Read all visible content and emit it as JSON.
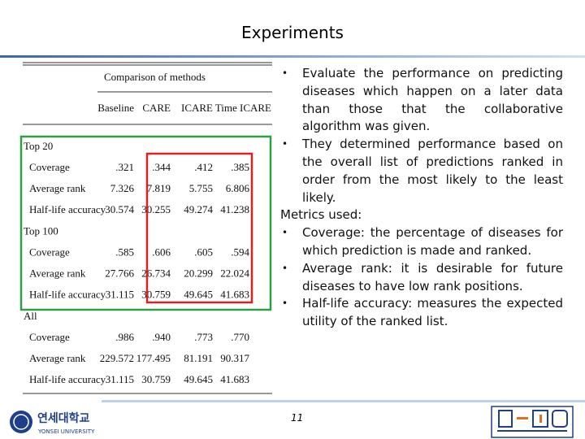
{
  "title": "Experiments",
  "table": {
    "caption": "Comparison of methods",
    "columns": [
      "Baseline",
      "CARE",
      "ICARE",
      "Time ICARE"
    ],
    "groups": [
      {
        "name": "Top 20",
        "rows": [
          {
            "label": "Coverage",
            "values": [
              ".321",
              ".344",
              ".412",
              ".385"
            ]
          },
          {
            "label": "Average rank",
            "values": [
              "7.326",
              "7.819",
              "5.755",
              "6.806"
            ]
          },
          {
            "label": "Half-life accuracy",
            "values": [
              "30.574",
              "30.255",
              "49.274",
              "41.238"
            ]
          }
        ]
      },
      {
        "name": "Top 100",
        "rows": [
          {
            "label": "Coverage",
            "values": [
              ".585",
              ".606",
              ".605",
              ".594"
            ]
          },
          {
            "label": "Average rank",
            "values": [
              "27.766",
              "26.734",
              "20.299",
              "22.024"
            ]
          },
          {
            "label": "Half-life accuracy",
            "values": [
              "31.115",
              "30.759",
              "49.645",
              "41.683"
            ]
          }
        ]
      },
      {
        "name": "All",
        "rows": [
          {
            "label": "Coverage",
            "values": [
              ".986",
              ".940",
              ".773",
              ".770"
            ]
          },
          {
            "label": "Average rank",
            "values": [
              "229.572",
              "177.495",
              "81.191",
              "90.317"
            ]
          },
          {
            "label": "Half-life accuracy",
            "values": [
              "31.115",
              "30.759",
              "49.645",
              "41.683"
            ]
          }
        ]
      }
    ]
  },
  "bullets": [
    "Evaluate the performance on predicting diseases which happen on a later data than those that the collaborative algorithm was given.",
    "They determined performance based on the overall list of predictions ranked in order from the most likely to the least likely."
  ],
  "metrics_heading": "Metrics used:",
  "metrics": [
    "Coverage: the percentage of diseases for which prediction is made and ranked.",
    "Average rank: it is desirable for future diseases to have low rank positions.",
    "Half-life accuracy: measures the expected utility of the ranked list."
  ],
  "page_number": "11",
  "logo": {
    "korean": "연세대학교",
    "english": "YONSEI UNIVERSITY"
  }
}
